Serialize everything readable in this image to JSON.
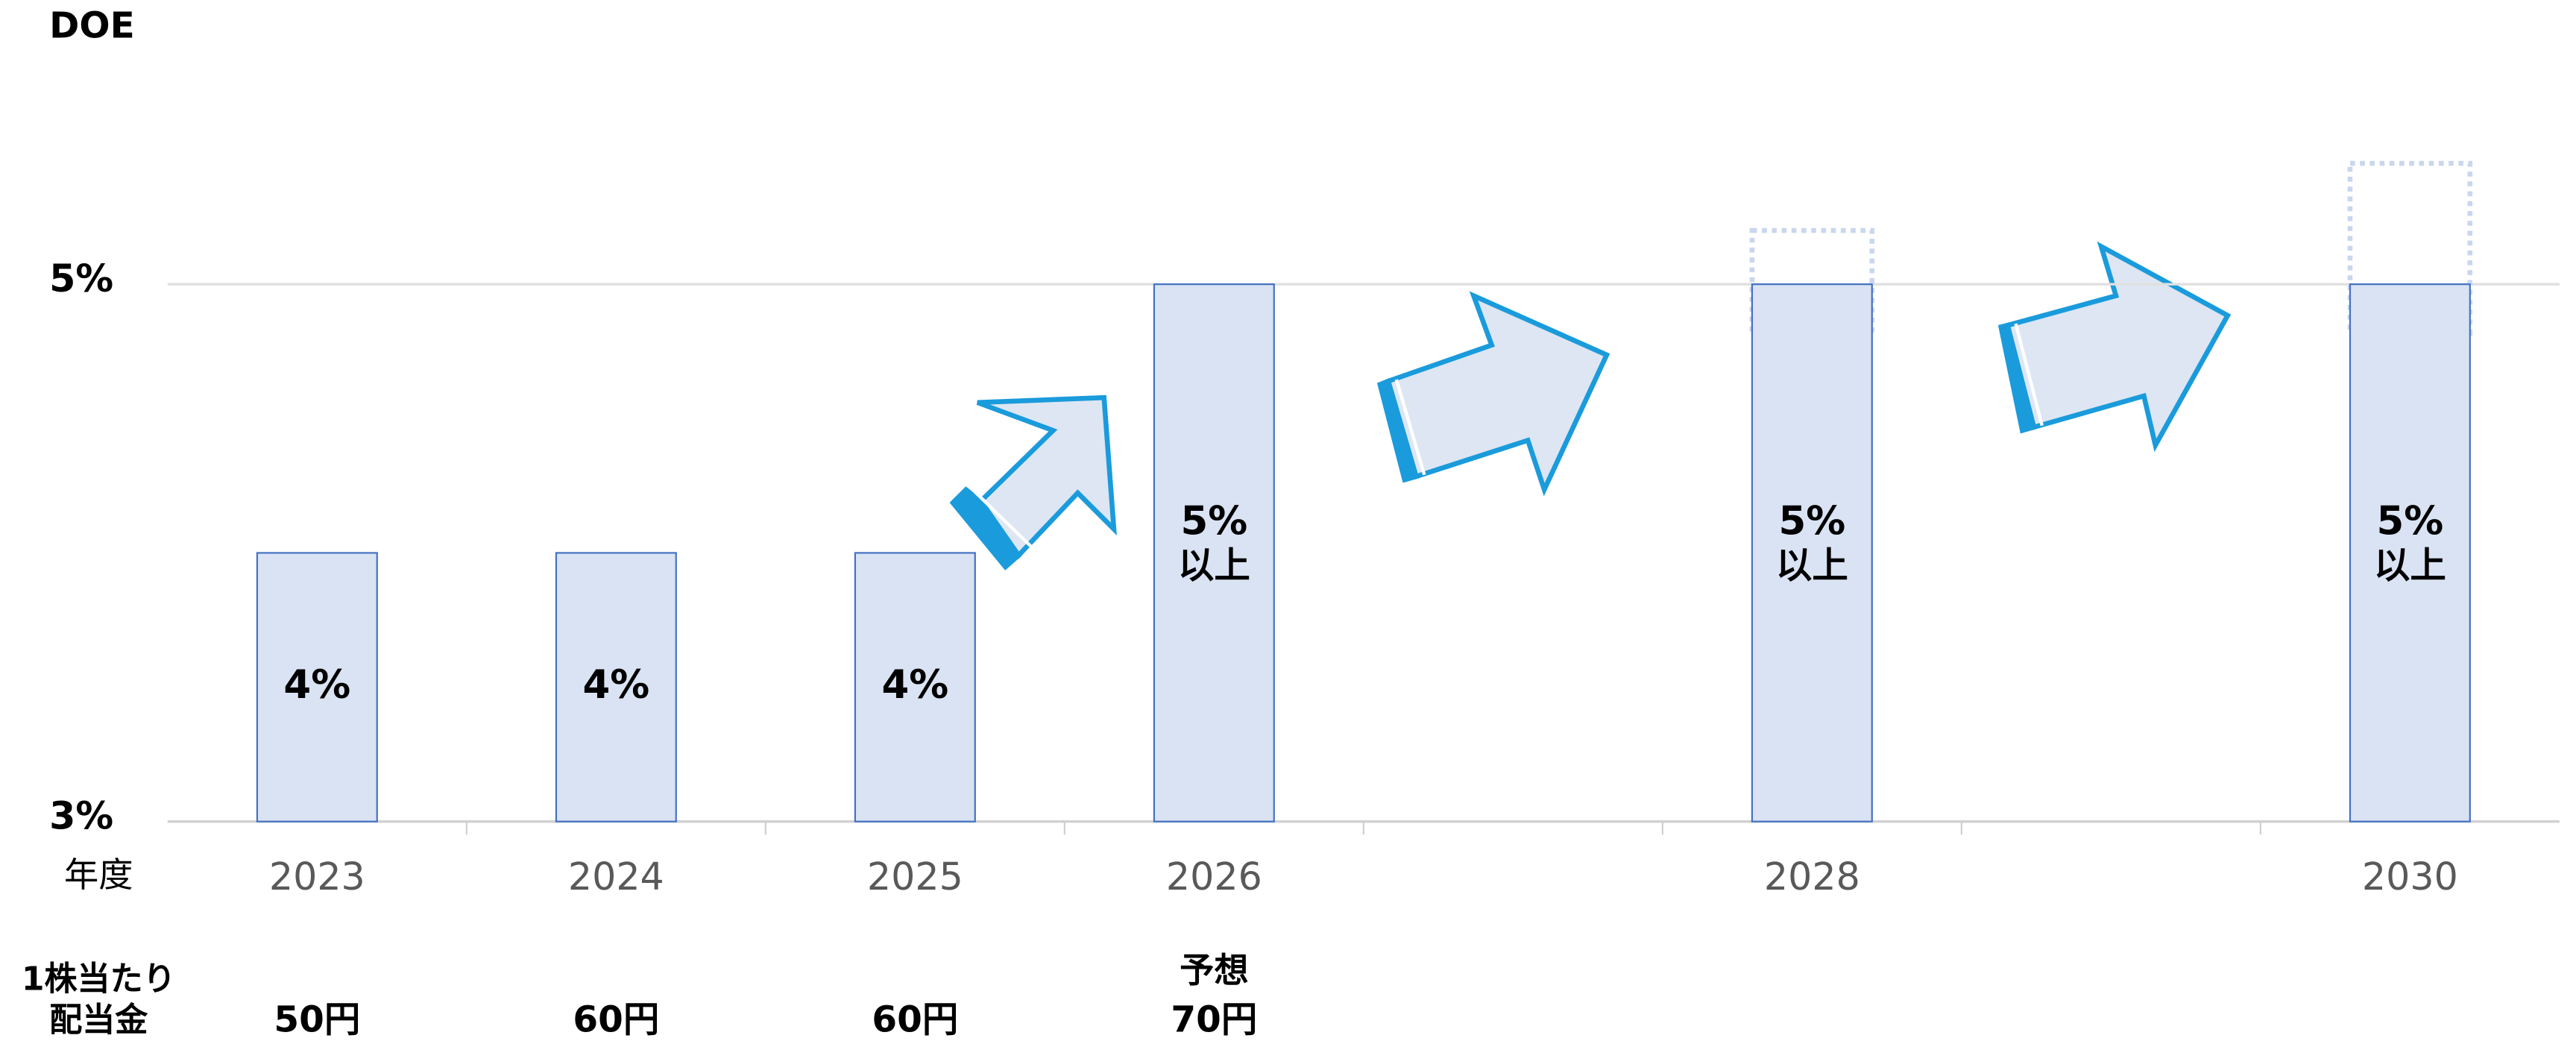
{
  "chart_data": {
    "type": "bar",
    "y_label": "DOE",
    "x_label": "年度",
    "categories": [
      "2023",
      "2024",
      "2025",
      "2026",
      null,
      "2028",
      null,
      "2030"
    ],
    "values": [
      4,
      4,
      4,
      5,
      null,
      5,
      null,
      5
    ],
    "value_labels": [
      "4%",
      "4%",
      "4%",
      "5%",
      null,
      "5%",
      null,
      "5%"
    ],
    "at_least": [
      false,
      false,
      false,
      true,
      null,
      true,
      null,
      true
    ],
    "at_least_label": "以上",
    "upside": [
      null,
      null,
      null,
      null,
      null,
      5.2,
      null,
      5.45
    ],
    "color": "#dae3f3",
    "edge_color": "#4472c4",
    "upside_color": "#c9d6ee",
    "grid": true,
    "ylim": [
      3,
      5.5
    ],
    "yticks": [
      {
        "value": 3,
        "label": "3%"
      },
      {
        "value": 5,
        "label": "5%"
      }
    ],
    "dividend": {
      "row_label": [
        "1株当たり",
        "配当金"
      ],
      "values": [
        50,
        60,
        60,
        70
      ],
      "value_labels": [
        "50円",
        "60円",
        "60円",
        "70円"
      ],
      "notes": [
        null,
        null,
        null,
        "予想"
      ]
    }
  }
}
